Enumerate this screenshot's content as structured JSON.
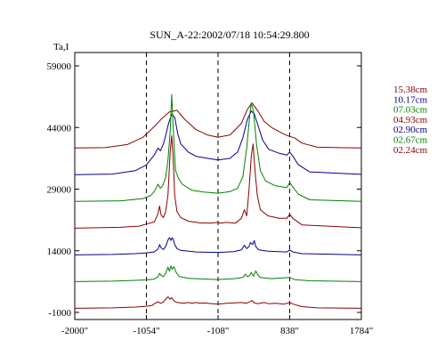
{
  "chart_data": {
    "type": "line",
    "title": "SUN_A-22:2002/07/18 10:54:29.800",
    "ylabel": "Ta,I",
    "xlabel": "",
    "xlim": [
      -2000,
      1784
    ],
    "ylim": [
      -1000,
      59000
    ],
    "x_ticks": [
      {
        "value": -2000,
        "label": "-2000\""
      },
      {
        "value": -1054,
        "label": "-1054\""
      },
      {
        "value": -108,
        "label": "-108\""
      },
      {
        "value": 838,
        "label": "838\""
      },
      {
        "value": 1784,
        "label": "1784\""
      }
    ],
    "y_ticks": [
      {
        "value": 59000,
        "label": "59000"
      },
      {
        "value": 44000,
        "label": "44000"
      },
      {
        "value": 29000,
        "label": "29000"
      },
      {
        "value": 14000,
        "label": "14000"
      },
      {
        "value": -1000,
        "label": "-1000"
      }
    ],
    "vlines": [
      -1054,
      -108,
      838
    ],
    "grid": false,
    "legend_position": "right",
    "series": [
      {
        "name": "15.38cm",
        "color": "#8b0000",
        "offset": 39000,
        "points": [
          [
            -2000,
            0
          ],
          [
            -1600,
            100
          ],
          [
            -1300,
            900
          ],
          [
            -1100,
            2600
          ],
          [
            -950,
            5200
          ],
          [
            -850,
            7200
          ],
          [
            -750,
            8800
          ],
          [
            -650,
            9200
          ],
          [
            -550,
            7000
          ],
          [
            -400,
            4500
          ],
          [
            -250,
            3200
          ],
          [
            -108,
            2600
          ],
          [
            50,
            3200
          ],
          [
            200,
            6000
          ],
          [
            280,
            9400
          ],
          [
            340,
            11000
          ],
          [
            420,
            9000
          ],
          [
            500,
            6500
          ],
          [
            600,
            5000
          ],
          [
            750,
            3500
          ],
          [
            838,
            2800
          ],
          [
            900,
            2500
          ],
          [
            1000,
            1200
          ],
          [
            1200,
            200
          ],
          [
            1784,
            0
          ]
        ]
      },
      {
        "name": "10.17cm",
        "color": "#00008b",
        "offset": 32500,
        "points": [
          [
            -2000,
            0
          ],
          [
            -1500,
            150
          ],
          [
            -1200,
            1000
          ],
          [
            -1054,
            2400
          ],
          [
            -950,
            4800
          ],
          [
            -900,
            6500
          ],
          [
            -870,
            5800
          ],
          [
            -830,
            7500
          ],
          [
            -800,
            9500
          ],
          [
            -760,
            12600
          ],
          [
            -720,
            14700
          ],
          [
            -680,
            14000
          ],
          [
            -640,
            10000
          ],
          [
            -600,
            7500
          ],
          [
            -500,
            5500
          ],
          [
            -400,
            4500
          ],
          [
            -250,
            4000
          ],
          [
            -108,
            3600
          ],
          [
            50,
            4000
          ],
          [
            150,
            5500
          ],
          [
            220,
            9000
          ],
          [
            280,
            13500
          ],
          [
            330,
            15500
          ],
          [
            370,
            14800
          ],
          [
            420,
            12000
          ],
          [
            480,
            8500
          ],
          [
            560,
            6200
          ],
          [
            700,
            5200
          ],
          [
            800,
            4800
          ],
          [
            838,
            5500
          ],
          [
            880,
            4500
          ],
          [
            950,
            2500
          ],
          [
            1100,
            700
          ],
          [
            1784,
            100
          ]
        ]
      },
      {
        "name": "07.03cm",
        "color": "#008000",
        "offset": 26000,
        "points": [
          [
            -2000,
            0
          ],
          [
            -1400,
            150
          ],
          [
            -1100,
            700
          ],
          [
            -1000,
            1400
          ],
          [
            -950,
            2400
          ],
          [
            -900,
            4200
          ],
          [
            -870,
            3200
          ],
          [
            -840,
            3800
          ],
          [
            -800,
            5800
          ],
          [
            -770,
            10000
          ],
          [
            -740,
            17000
          ],
          [
            -720,
            26000
          ],
          [
            -700,
            18000
          ],
          [
            -670,
            7500
          ],
          [
            -630,
            5600
          ],
          [
            -580,
            4200
          ],
          [
            -450,
            2700
          ],
          [
            -300,
            2300
          ],
          [
            -108,
            2000
          ],
          [
            50,
            2400
          ],
          [
            150,
            3200
          ],
          [
            220,
            6000
          ],
          [
            270,
            13000
          ],
          [
            310,
            21000
          ],
          [
            330,
            24000
          ],
          [
            360,
            22000
          ],
          [
            400,
            14000
          ],
          [
            450,
            7500
          ],
          [
            520,
            5000
          ],
          [
            650,
            3800
          ],
          [
            800,
            3400
          ],
          [
            838,
            4600
          ],
          [
            880,
            3500
          ],
          [
            950,
            1800
          ],
          [
            1100,
            400
          ],
          [
            1784,
            0
          ]
        ]
      },
      {
        "name": "04.93cm",
        "color": "#8b0000",
        "offset": 19500,
        "points": [
          [
            -2000,
            0
          ],
          [
            -1400,
            200
          ],
          [
            -1150,
            500
          ],
          [
            -1054,
            1000
          ],
          [
            -950,
            1500
          ],
          [
            -900,
            3500
          ],
          [
            -880,
            5400
          ],
          [
            -860,
            3200
          ],
          [
            -830,
            2600
          ],
          [
            -800,
            4000
          ],
          [
            -770,
            8000
          ],
          [
            -740,
            18500
          ],
          [
            -720,
            22500
          ],
          [
            -700,
            17000
          ],
          [
            -680,
            8000
          ],
          [
            -650,
            4000
          ],
          [
            -600,
            2600
          ],
          [
            -500,
            1700
          ],
          [
            -350,
            1300
          ],
          [
            -200,
            1200
          ],
          [
            -120,
            1400
          ],
          [
            -80,
            1200
          ],
          [
            0,
            1400
          ],
          [
            120,
            1200
          ],
          [
            200,
            2400
          ],
          [
            240,
            4500
          ],
          [
            270,
            3000
          ],
          [
            300,
            9000
          ],
          [
            330,
            17500
          ],
          [
            355,
            20500
          ],
          [
            380,
            14000
          ],
          [
            410,
            8000
          ],
          [
            450,
            4500
          ],
          [
            550,
            3000
          ],
          [
            700,
            2400
          ],
          [
            800,
            2400
          ],
          [
            838,
            3400
          ],
          [
            880,
            2400
          ],
          [
            1000,
            800
          ],
          [
            1784,
            100
          ]
        ]
      },
      {
        "name": "02.90cm",
        "color": "#00008b",
        "offset": 13000,
        "points": [
          [
            -2000,
            0
          ],
          [
            -1500,
            100
          ],
          [
            -1200,
            300
          ],
          [
            -1054,
            500
          ],
          [
            -950,
            700
          ],
          [
            -900,
            1400
          ],
          [
            -880,
            2500
          ],
          [
            -860,
            1700
          ],
          [
            -830,
            1300
          ],
          [
            -800,
            2000
          ],
          [
            -770,
            3600
          ],
          [
            -750,
            4200
          ],
          [
            -730,
            3500
          ],
          [
            -715,
            4200
          ],
          [
            -700,
            3800
          ],
          [
            -680,
            2500
          ],
          [
            -650,
            1500
          ],
          [
            -600,
            1100
          ],
          [
            -400,
            700
          ],
          [
            -108,
            600
          ],
          [
            100,
            800
          ],
          [
            200,
            1200
          ],
          [
            240,
            2300
          ],
          [
            270,
            1500
          ],
          [
            300,
            2000
          ],
          [
            320,
            3000
          ],
          [
            350,
            2500
          ],
          [
            370,
            3500
          ],
          [
            390,
            2000
          ],
          [
            430,
            1200
          ],
          [
            550,
            900
          ],
          [
            800,
            700
          ],
          [
            838,
            1200
          ],
          [
            880,
            700
          ],
          [
            1000,
            300
          ],
          [
            1784,
            0
          ]
        ]
      },
      {
        "name": "02.67cm",
        "color": "#008000",
        "offset": 6500,
        "points": [
          [
            -2000,
            0
          ],
          [
            -1500,
            100
          ],
          [
            -1200,
            300
          ],
          [
            -1054,
            400
          ],
          [
            -950,
            600
          ],
          [
            -900,
            1200
          ],
          [
            -880,
            2000
          ],
          [
            -860,
            1500
          ],
          [
            -830,
            1200
          ],
          [
            -800,
            2000
          ],
          [
            -770,
            3500
          ],
          [
            -750,
            2500
          ],
          [
            -730,
            3800
          ],
          [
            -715,
            3000
          ],
          [
            -690,
            3600
          ],
          [
            -660,
            2200
          ],
          [
            -620,
            1200
          ],
          [
            -500,
            800
          ],
          [
            -108,
            500
          ],
          [
            100,
            700
          ],
          [
            220,
            1000
          ],
          [
            250,
            1800
          ],
          [
            280,
            1200
          ],
          [
            310,
            1500
          ],
          [
            330,
            2200
          ],
          [
            360,
            1300
          ],
          [
            390,
            2600
          ],
          [
            420,
            1500
          ],
          [
            450,
            1000
          ],
          [
            600,
            700
          ],
          [
            838,
            1000
          ],
          [
            900,
            500
          ],
          [
            1100,
            200
          ],
          [
            1784,
            0
          ]
        ]
      },
      {
        "name": "02.24cm",
        "color": "#8b0000",
        "offset": 0,
        "points": [
          [
            -2000,
            0
          ],
          [
            -1500,
            100
          ],
          [
            -1200,
            300
          ],
          [
            -1054,
            500
          ],
          [
            -980,
            700
          ],
          [
            -950,
            1100
          ],
          [
            -900,
            1600
          ],
          [
            -870,
            1200
          ],
          [
            -830,
            1500
          ],
          [
            -800,
            2200
          ],
          [
            -770,
            2800
          ],
          [
            -740,
            2200
          ],
          [
            -720,
            2600
          ],
          [
            -690,
            1800
          ],
          [
            -650,
            1400
          ],
          [
            -560,
            1200
          ],
          [
            -500,
            1400
          ],
          [
            -450,
            1200
          ],
          [
            -400,
            1400
          ],
          [
            -350,
            1200
          ],
          [
            -300,
            1300
          ],
          [
            -108,
            1000
          ],
          [
            0,
            1200
          ],
          [
            100,
            1300
          ],
          [
            200,
            1400
          ],
          [
            260,
            1200
          ],
          [
            300,
            1500
          ],
          [
            340,
            1900
          ],
          [
            370,
            1300
          ],
          [
            420,
            1100
          ],
          [
            500,
            1400
          ],
          [
            560,
            1100
          ],
          [
            650,
            1200
          ],
          [
            760,
            1000
          ],
          [
            838,
            1400
          ],
          [
            900,
            900
          ],
          [
            1000,
            400
          ],
          [
            1200,
            100
          ],
          [
            1784,
            0
          ]
        ]
      }
    ]
  }
}
